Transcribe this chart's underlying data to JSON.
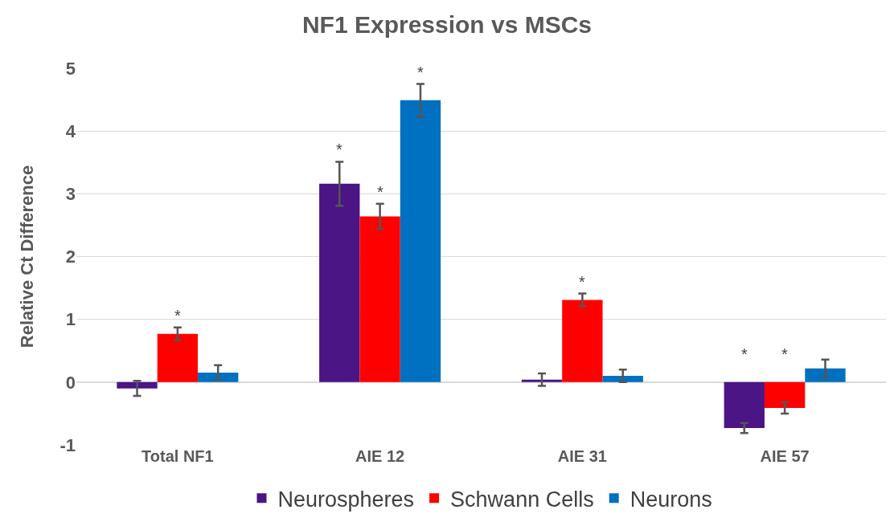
{
  "chart_data": {
    "type": "bar",
    "title": "NF1 Expression vs MSCs",
    "ylabel": "Relative Ct Difference",
    "categories": [
      "Total NF1",
      "AIE 12",
      "AIE 31",
      "AIE 57"
    ],
    "series": [
      {
        "name": "Neurospheres",
        "color": "#4b1585",
        "values": [
          -0.1,
          3.16,
          0.04,
          -0.73
        ],
        "errors": [
          0.12,
          0.35,
          0.1,
          0.08
        ],
        "value_labels": [
          null,
          "*",
          null,
          "*"
        ]
      },
      {
        "name": "Schwann Cells",
        "color": "#ff0000",
        "values": [
          0.77,
          2.64,
          1.31,
          -0.41
        ],
        "errors": [
          0.1,
          0.2,
          0.1,
          0.09
        ],
        "value_labels": [
          "*",
          "*",
          "*",
          "*"
        ]
      },
      {
        "name": "Neurons",
        "color": "#0070c0",
        "values": [
          0.15,
          4.49,
          0.1,
          0.22
        ],
        "errors": [
          0.12,
          0.26,
          0.1,
          0.14
        ],
        "value_labels": [
          null,
          "*",
          null,
          null
        ]
      }
    ],
    "ylim": [
      -1,
      5
    ],
    "yticks": [
      -1,
      0,
      1,
      2,
      3,
      4,
      5
    ],
    "grid": "y",
    "legend": "bottom"
  }
}
